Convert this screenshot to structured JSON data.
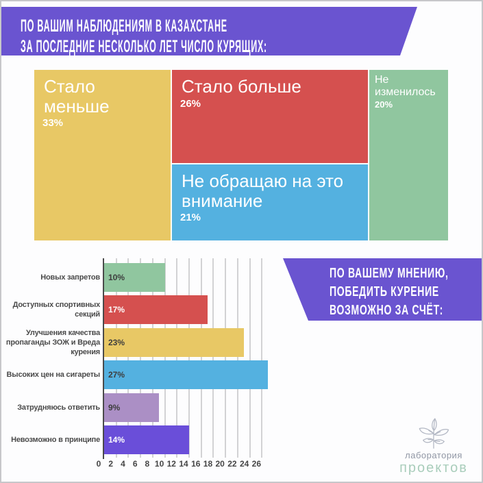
{
  "banners": {
    "top": {
      "lines": [
        "ПО ВАШИМ НАБЛЮДЕНИЯМ В КАЗАХСТАНЕ",
        "ЗА ПОСЛЕДНИЕ НЕСКОЛЬКО ЛЕТ ЧИСЛО КУРЯЩИХ:"
      ],
      "bg_color": "#6a54d0",
      "text_color": "#ffffff"
    },
    "right": {
      "lines": [
        "ПО ВАШЕМУ МНЕНИЮ,",
        "ПОБЕДИТЬ КУРЕНИЕ",
        "ВОЗМОЖНО ЗА СЧЁТ:"
      ],
      "bg_color": "#6a54d0",
      "text_color": "#ffffff"
    }
  },
  "chart_data": [
    {
      "type": "treemap",
      "title": "ПО ВАШИМ НАБЛЮДЕНИЯМ В КАЗАХСТАНЕ ЗА ПОСЛЕДНИЕ НЕСКОЛЬКО ЛЕТ ЧИСЛО КУРЯЩИХ:",
      "items": [
        {
          "label": "Стало меньше",
          "value": 33,
          "pct_label": "33%",
          "color": "#e8c865"
        },
        {
          "label": "Стало больше",
          "value": 26,
          "pct_label": "26%",
          "color": "#d5504f"
        },
        {
          "label": "Не обращаю на это внимание",
          "value": 21,
          "pct_label": "21%",
          "color": "#54b1e0"
        },
        {
          "label": "Не изменилось",
          "value": 20,
          "pct_label": "20%",
          "color": "#90c69f"
        }
      ]
    },
    {
      "type": "bar",
      "orientation": "horizontal",
      "title": "ПО ВАШЕМУ МНЕНИЮ, ПОБЕДИТЬ КУРЕНИЕ ВОЗМОЖНО ЗА СЧЁТ:",
      "categories": [
        [
          "Новых запретов"
        ],
        [
          "Доступных спортивных",
          "секций"
        ],
        [
          "Улучшения качества",
          "пропаганды ЗОЖ и Вреда",
          "курения"
        ],
        [
          "Высоких цен на сигареты"
        ],
        [
          "Затрудняюсь ответить"
        ],
        [
          "Невозможно в принципе"
        ]
      ],
      "values": [
        10,
        17,
        23,
        27,
        9,
        14
      ],
      "value_labels": [
        "10%",
        "17%",
        "23%",
        "27%",
        "9%",
        "14%"
      ],
      "colors": [
        "#90c69f",
        "#d5504f",
        "#e8c865",
        "#54b1e0",
        "#ab8fc5",
        "#6a4ed9"
      ],
      "value_label_colors": [
        "#3d3d3d",
        "#ffffff",
        "#3d3d3d",
        "#3d3d3d",
        "#3d3d3d",
        "#ffffff"
      ],
      "x_ticks": [
        0,
        2,
        4,
        6,
        8,
        10,
        12,
        14,
        16,
        18,
        20,
        22,
        24,
        26
      ],
      "xlim": [
        0,
        27
      ],
      "grid": true,
      "grid_color": "#d2d2d4",
      "axis_color": "#4a4a4a"
    }
  ],
  "logo": {
    "line1": "лаборатория",
    "line2": "проектов"
  }
}
